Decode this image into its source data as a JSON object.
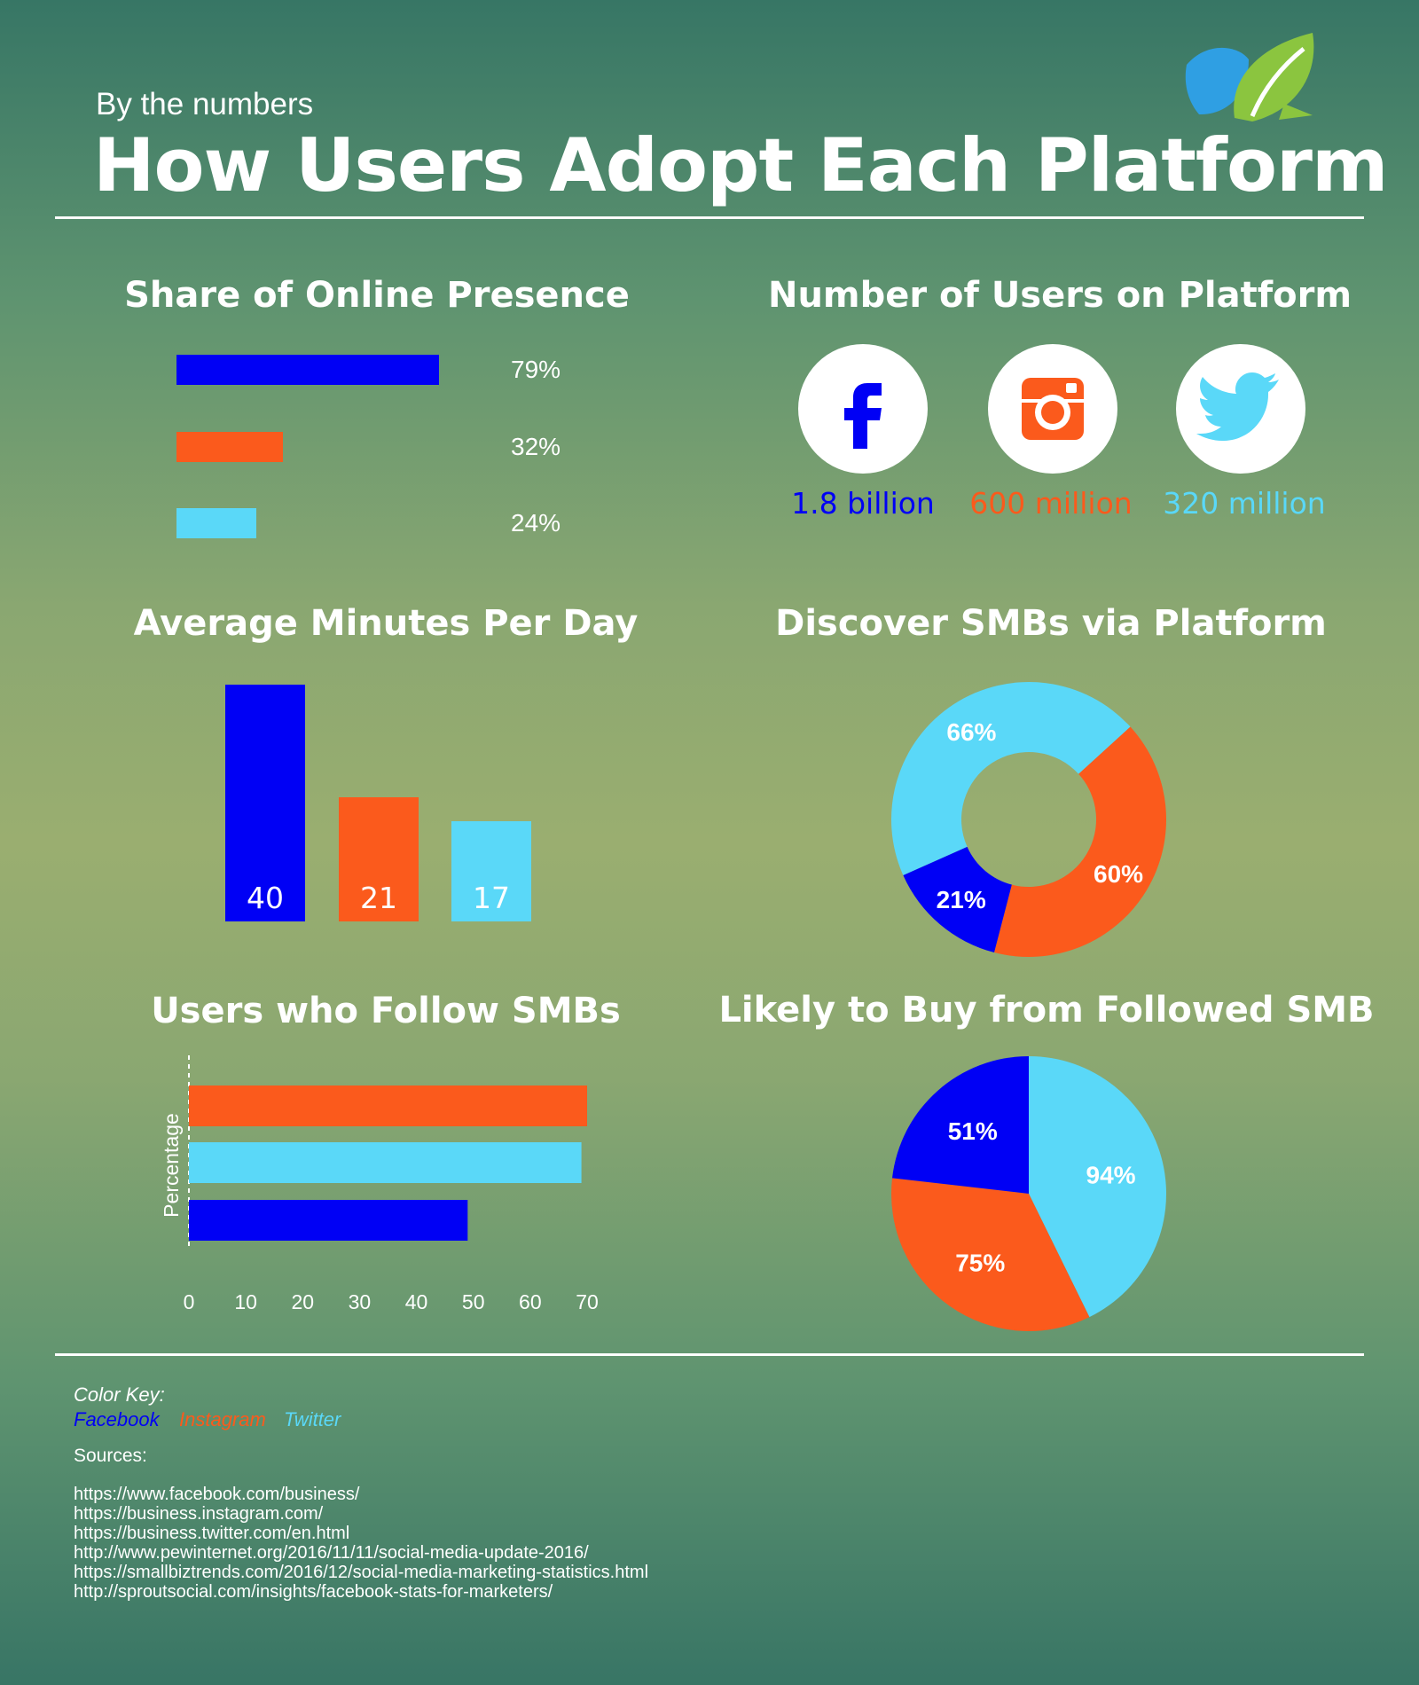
{
  "header": {
    "subtitle": "By the numbers",
    "title": "How Users Adopt Each Platform"
  },
  "colors": {
    "facebook": "#0000f5",
    "instagram": "#fb5a1c",
    "twitter": "#5ad8f8",
    "logo_blue": "#2f9fe3",
    "logo_green": "#8bc53f"
  },
  "icons": [
    "leaf-logo-icon",
    "facebook-icon",
    "instagram-icon",
    "twitter-icon"
  ],
  "chart_data": [
    {
      "type": "bar",
      "orientation": "horizontal",
      "title": "Share of Online Presence",
      "categories": [
        "Facebook",
        "Instagram",
        "Twitter"
      ],
      "values": [
        79,
        32,
        24
      ],
      "value_labels": [
        "79%",
        "32%",
        "24%"
      ],
      "xlim": [
        0,
        100
      ]
    },
    {
      "type": "table",
      "title": "Number of Users on Platform",
      "categories": [
        "Facebook",
        "Instagram",
        "Twitter"
      ],
      "value_labels": [
        "1.8 billion",
        "600 million",
        "320 million"
      ]
    },
    {
      "type": "bar",
      "title": "Average Minutes Per Day",
      "categories": [
        "Facebook",
        "Instagram",
        "Twitter"
      ],
      "values": [
        40,
        21,
        17
      ],
      "value_labels": [
        "40",
        "21",
        "17"
      ],
      "ylim": [
        0,
        40
      ]
    },
    {
      "type": "pie",
      "style": "donut",
      "title": "Discover SMBs via Platform",
      "categories": [
        "Twitter",
        "Instagram",
        "Facebook"
      ],
      "values": [
        66,
        60,
        21
      ],
      "value_labels": [
        "66%",
        "60%",
        "21%"
      ]
    },
    {
      "type": "bar",
      "orientation": "horizontal",
      "title": "Users who Follow SMBs",
      "categories": [
        "Instagram",
        "Twitter",
        "Facebook"
      ],
      "values": [
        70,
        69,
        49
      ],
      "ylabel": "Percentage",
      "xlim": [
        0,
        70
      ],
      "xticks": [
        "0",
        "10",
        "20",
        "30",
        "40",
        "50",
        "60",
        "70"
      ]
    },
    {
      "type": "pie",
      "title": "Likely to Buy from Followed SMB",
      "categories": [
        "Twitter",
        "Instagram",
        "Facebook"
      ],
      "values": [
        94,
        75,
        51
      ],
      "value_labels": [
        "94%",
        "75%",
        "51%"
      ]
    }
  ],
  "footer": {
    "color_key_title": "Color Key:",
    "color_key": [
      "Facebook",
      "Instagram",
      "Twitter"
    ],
    "sources_title": "Sources:",
    "sources": [
      "https://www.facebook.com/business/",
      "https://business.instagram.com/",
      "https://business.twitter.com/en.html",
      "http://www.pewinternet.org/2016/11/11/social-media-update-2016/",
      "https://smallbiztrends.com/2016/12/social-media-marketing-statistics.html",
      "http://sproutsocial.com/insights/facebook-stats-for-marketers/"
    ]
  }
}
